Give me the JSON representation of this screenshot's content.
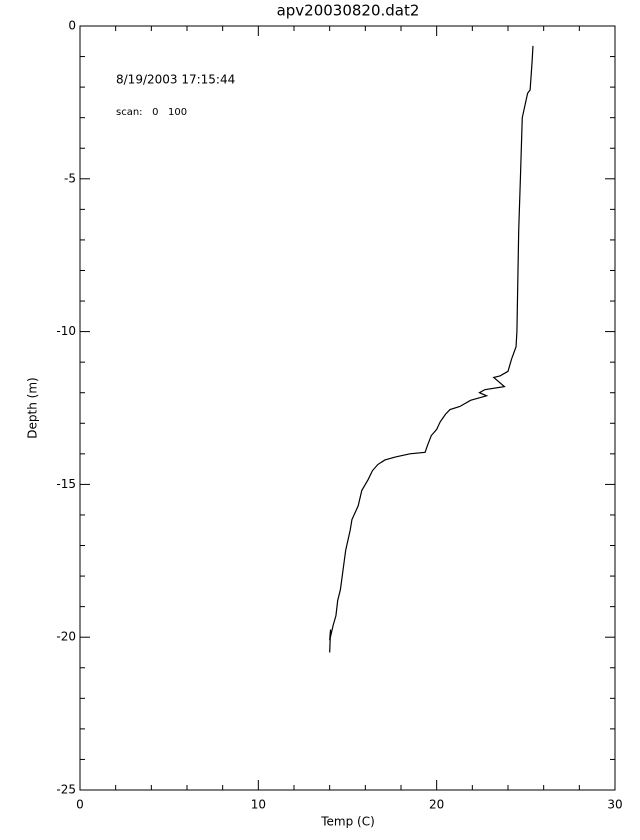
{
  "chart_data": {
    "type": "line",
    "title": "apv20030820.dat2",
    "annotations": [
      "8/19/2003 17:15:44",
      "scan:   0   100"
    ],
    "x_label": "Temp (C)",
    "y_label": "Depth (m)",
    "xlim": [
      0,
      30
    ],
    "xticks": [
      0,
      10,
      20,
      30
    ],
    "x_minor": 5,
    "ylim": [
      -25,
      0
    ],
    "yticks": [
      -25,
      -20,
      -15,
      -10,
      -5,
      0
    ],
    "y_minor": 5,
    "grid": false,
    "series": [
      {
        "color": "#000000",
        "x": [
          25.4,
          25.35,
          25.24,
          25.1,
          24.8,
          24.7,
          24.6,
          24.5,
          24.45,
          24.2,
          24.0,
          23.55,
          23.2,
          23.8,
          22.7,
          22.4,
          22.8,
          21.9,
          21.3,
          20.75,
          20.5,
          20.2,
          20.0,
          19.7,
          19.5,
          19.35,
          18.5,
          17.7,
          17.1,
          16.7,
          16.4,
          16.15,
          15.8,
          15.6,
          15.25,
          15.15,
          14.9,
          14.75,
          14.6,
          14.45,
          14.35,
          14.2,
          14.0,
          14.05,
          14.0
        ],
        "values": [
          -0.65,
          -1.18,
          -2.09,
          -2.2,
          -3.0,
          -4.9,
          -6.7,
          -10.0,
          -10.5,
          -10.9,
          -11.3,
          -11.45,
          -11.5,
          -11.8,
          -11.9,
          -12.0,
          -12.1,
          -12.25,
          -12.45,
          -12.55,
          -12.7,
          -12.95,
          -13.2,
          -13.4,
          -13.7,
          -13.95,
          -14.0,
          -14.1,
          -14.2,
          -14.35,
          -14.55,
          -14.85,
          -15.2,
          -15.7,
          -16.15,
          -16.5,
          -17.15,
          -17.8,
          -18.45,
          -18.8,
          -19.3,
          -19.6,
          -20.1,
          -19.75,
          -20.5
        ]
      }
    ]
  }
}
